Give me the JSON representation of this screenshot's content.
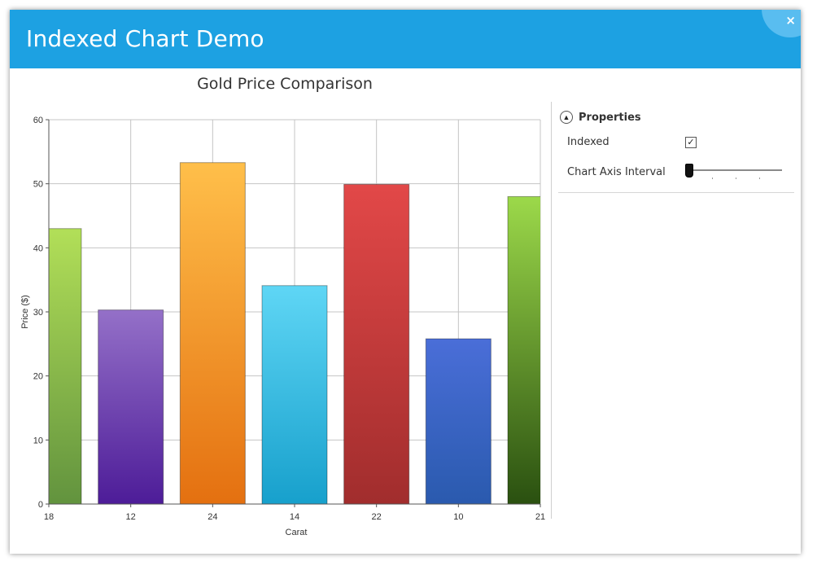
{
  "window": {
    "title": "Indexed Chart Demo",
    "close_label": "×"
  },
  "properties": {
    "header": "Properties",
    "indexed_label": "Indexed",
    "indexed_checked": true,
    "indexed_mark": "✓",
    "interval_label": "Chart Axis Interval",
    "interval_value": 0
  },
  "chart_data": {
    "type": "bar",
    "title": "Gold Price Comparison",
    "xlabel": "Carat",
    "ylabel": "Price ($)",
    "categories": [
      "18",
      "12",
      "24",
      "14",
      "22",
      "10",
      "21"
    ],
    "values": [
      43,
      30.3,
      53.3,
      34.1,
      49.9,
      25.8,
      48
    ],
    "ylim": [
      0,
      60
    ],
    "yticks": [
      "0",
      "10",
      "20",
      "30",
      "40",
      "50",
      "60"
    ],
    "grid": true,
    "colors": [
      [
        "#b2df58",
        "#62933e"
      ],
      [
        "#9470c8",
        "#4d1c98"
      ],
      [
        "#ffbf4a",
        "#e47010"
      ],
      [
        "#5fd6f5",
        "#17a0cc"
      ],
      [
        "#e24848",
        "#a12d2d"
      ],
      [
        "#4a6ed8",
        "#2a5aae"
      ],
      [
        "#9cd94a",
        "#2a5010"
      ]
    ]
  }
}
